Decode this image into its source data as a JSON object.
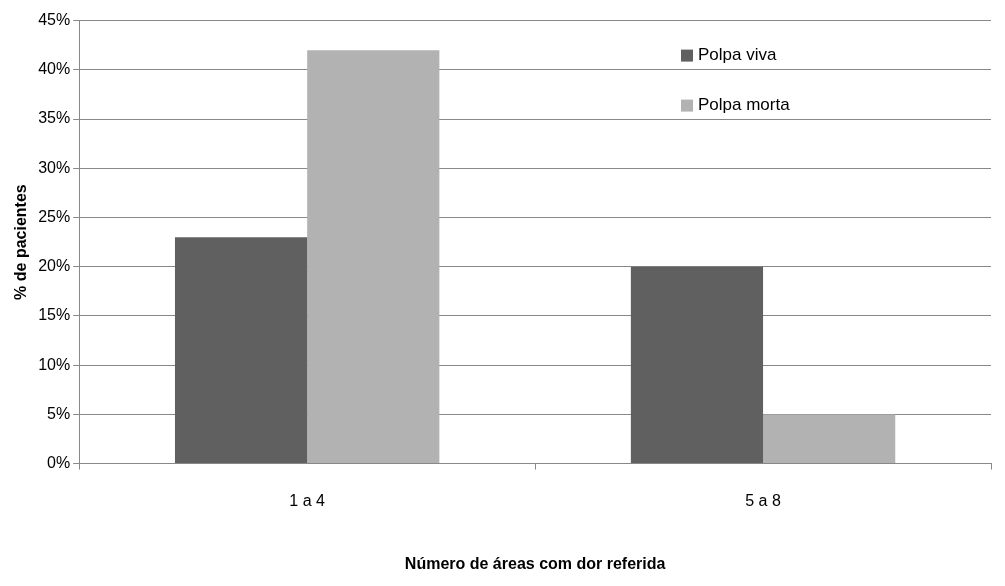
{
  "chart_data": {
    "type": "bar",
    "xlabel": "Número de áreas com dor referida",
    "ylabel": "% de pacientes",
    "categories": [
      "1 a 4",
      "5 a 8"
    ],
    "series": [
      {
        "name": "Polpa viva",
        "color": "#606060",
        "values": [
          23,
          20
        ]
      },
      {
        "name": "Polpa morta",
        "color": "#b2b2b2",
        "values": [
          42,
          5
        ]
      }
    ],
    "ylim": [
      0,
      45
    ],
    "yticks": [
      {
        "value": 0,
        "label": "0%"
      },
      {
        "value": 5,
        "label": "5%"
      },
      {
        "value": 10,
        "label": "10%"
      },
      {
        "value": 15,
        "label": "15%"
      },
      {
        "value": 20,
        "label": "20%"
      },
      {
        "value": 25,
        "label": "25%"
      },
      {
        "value": 30,
        "label": "30%"
      },
      {
        "value": 35,
        "label": "35%"
      },
      {
        "value": 40,
        "label": "40%"
      },
      {
        "value": 45,
        "label": "45%"
      }
    ],
    "grid": "y",
    "legend": "top right"
  }
}
